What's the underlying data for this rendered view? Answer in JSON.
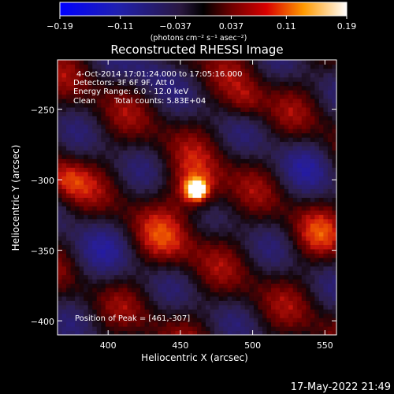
{
  "chart_data": {
    "type": "heatmap",
    "title": "Reconstructed RHESSI Image",
    "xlabel": "Heliocentric X (arcsec)",
    "ylabel": "Heliocentric Y (arcsec)",
    "xlim": [
      365,
      558
    ],
    "ylim": [
      -410,
      -215
    ],
    "x_ticks": [
      400,
      450,
      500,
      550
    ],
    "y_ticks": [
      -250,
      -300,
      -350,
      -400
    ],
    "colorbar": {
      "ticks": [
        -0.19,
        -0.11,
        -0.037,
        0.037,
        0.11,
        0.19
      ],
      "tick_labels": [
        "-0.19",
        "-0.11",
        "-0.037",
        "0.037",
        "0.11",
        "0.19"
      ],
      "range": [
        -0.19,
        0.19
      ],
      "units_label": "(photons cm⁻² s⁻¹ asec⁻²)"
    },
    "annotations": {
      "time_range": "4-Oct-2014 17:01:24.000 to 17:05:16.000",
      "detectors": "Detectors: 3F 6F 9F, Att 0",
      "energy": "Energy Range: 6.0 - 12.0 keV",
      "method": "Clean",
      "counts": "Total counts: 5.83E+04",
      "peak": "Position of Peak = [461,-307]"
    },
    "peak": [
      461,
      -307
    ],
    "grid": false,
    "timestamp": "17-May-2022 21:49"
  }
}
